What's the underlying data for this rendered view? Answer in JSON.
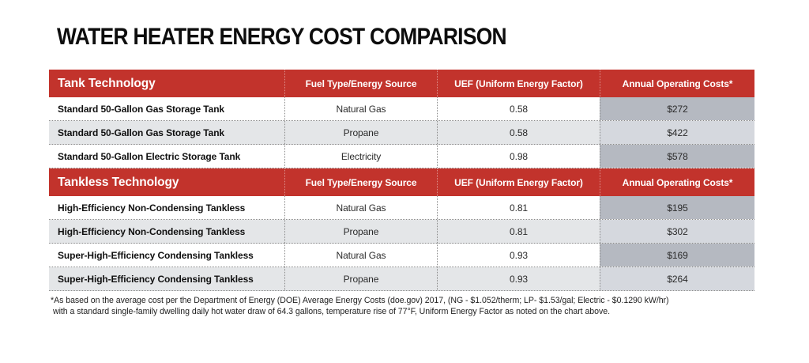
{
  "title": "WATER HEATER ENERGY COST COMPARISON",
  "sections": [
    {
      "header": {
        "technology": "Tank Technology",
        "fuel": "Fuel Type/Energy Source",
        "uef": "UEF (Uniform Energy Factor)",
        "cost": "Annual Operating Costs*"
      },
      "rows": [
        {
          "technology": "Standard 50-Gallon Gas Storage Tank",
          "fuel": "Natural Gas",
          "uef": "0.58",
          "cost": "$272"
        },
        {
          "technology": "Standard 50-Gallon Gas Storage Tank",
          "fuel": "Propane",
          "uef": "0.58",
          "cost": "$422"
        },
        {
          "technology": "Standard 50-Gallon Electric Storage Tank",
          "fuel": "Electricity",
          "uef": "0.98",
          "cost": "$578"
        }
      ]
    },
    {
      "header": {
        "technology": "Tankless Technology",
        "fuel": "Fuel Type/Energy Source",
        "uef": "UEF (Uniform Energy Factor)",
        "cost": "Annual Operating Costs*"
      },
      "rows": [
        {
          "technology": "High-Efficiency Non-Condensing Tankless",
          "fuel": "Natural Gas",
          "uef": "0.81",
          "cost": "$195"
        },
        {
          "technology": "High-Efficiency Non-Condensing Tankless",
          "fuel": "Propane",
          "uef": "0.81",
          "cost": "$302"
        },
        {
          "technology": "Super-High-Efficiency Condensing Tankless",
          "fuel": "Natural Gas",
          "uef": "0.93",
          "cost": "$169"
        },
        {
          "technology": "Super-High-Efficiency Condensing Tankless",
          "fuel": "Propane",
          "uef": "0.93",
          "cost": "$264"
        }
      ]
    }
  ],
  "footnote": {
    "line1": "*As based on the average cost per the Department of Energy (DOE) Average Energy Costs (doe.gov) 2017, (NG - $1.052/therm; LP- $1.53/gal; Electric - $0.1290 kW/hr)",
    "line2": "with a standard single-family dwelling daily hot water draw of 64.3 gallons, temperature rise of 77°F, Uniform Energy Factor as noted on the chart above."
  },
  "colors": {
    "header_red": "#C2332C",
    "shade_row": "#E4E6E8",
    "cost_on_white": "#B5B9C1",
    "cost_on_shade": "#D5D8DE"
  },
  "chart_data": {
    "type": "table",
    "title": "WATER HEATER ENERGY COST COMPARISON",
    "columns": [
      "Technology",
      "Fuel Type/Energy Source",
      "UEF (Uniform Energy Factor)",
      "Annual Operating Costs*"
    ],
    "sections": [
      {
        "name": "Tank Technology",
        "rows": [
          [
            "Standard 50-Gallon Gas Storage Tank",
            "Natural Gas",
            0.58,
            272
          ],
          [
            "Standard 50-Gallon Gas Storage Tank",
            "Propane",
            0.58,
            422
          ],
          [
            "Standard 50-Gallon Electric Storage Tank",
            "Electricity",
            0.98,
            578
          ]
        ]
      },
      {
        "name": "Tankless Technology",
        "rows": [
          [
            "High-Efficiency Non-Condensing Tankless",
            "Natural Gas",
            0.81,
            195
          ],
          [
            "High-Efficiency Non-Condensing Tankless",
            "Propane",
            0.81,
            302
          ],
          [
            "Super-High-Efficiency Condensing Tankless",
            "Natural Gas",
            0.93,
            169
          ],
          [
            "Super-High-Efficiency Condensing Tankless",
            "Propane",
            0.93,
            264
          ]
        ]
      }
    ],
    "footnote": "*As based on the average cost per the Department of Energy (DOE) Average Energy Costs (doe.gov) 2017, (NG - $1.052/therm; LP- $1.53/gal; Electric - $0.1290 kW/hr) with a standard single-family dwelling daily hot water draw of 64.3 gallons, temperature rise of 77°F, Uniform Energy Factor as noted on the chart above."
  }
}
